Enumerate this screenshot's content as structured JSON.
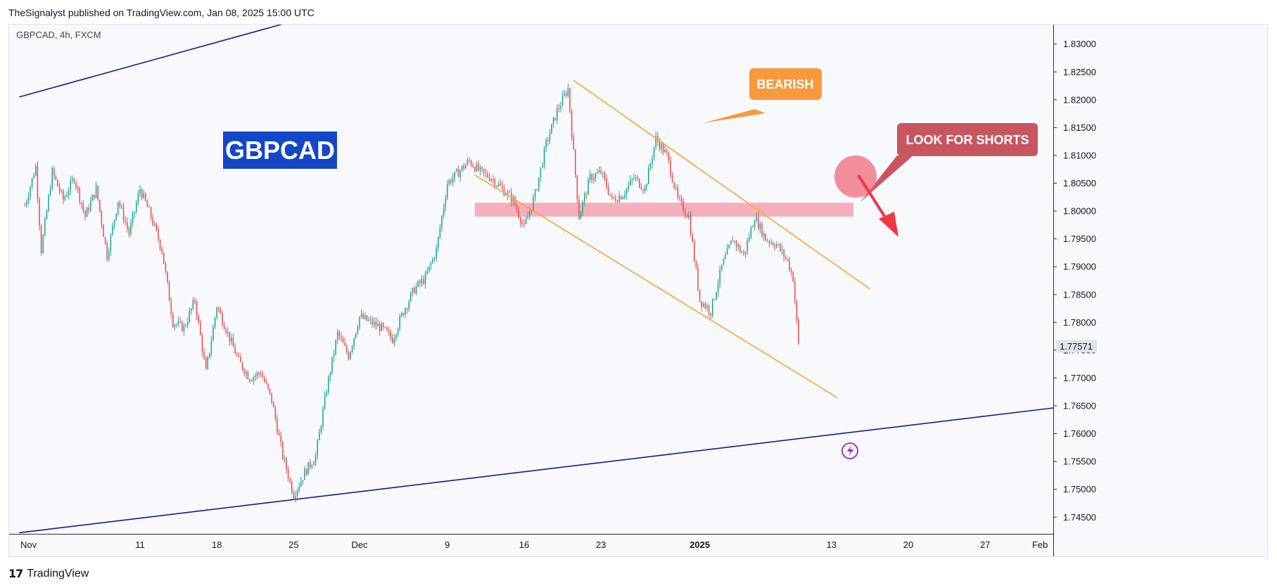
{
  "header": {
    "publisher": "TheSignalyst published on TradingView.com, Jan 08, 2025 15:00 UTC"
  },
  "footer": {
    "brand": "TradingView",
    "logo_glyph": "17"
  },
  "colors": {
    "up": "#26a69a",
    "down": "#ef5350",
    "channel": "#0d1f8c",
    "trend": "#f7a534",
    "zone": "#f4a6b3",
    "label_bearish_bg": "#f79a3e",
    "label_shorts_bg": "#c8565f",
    "title_bg": "#1447c8",
    "arrow": "#f23645",
    "circle": "#f06a7a"
  },
  "chart_data": {
    "type": "candlestick",
    "symbol_info": "GBPCAD, 4h, FXCM",
    "watermark": "GBPCAD",
    "annotations": {
      "bearish": "BEARISH",
      "shorts": "LOOK FOR SHORTS"
    },
    "last_price": "1.77571",
    "ylim": [
      1.742,
      1.8335
    ],
    "y_ticks": [
      "1.83000",
      "1.82500",
      "1.82000",
      "1.81500",
      "1.81000",
      "1.80500",
      "1.80000",
      "1.79500",
      "1.79000",
      "1.78500",
      "1.78000",
      "1.77500",
      "1.77000",
      "1.76500",
      "1.76000",
      "1.75500",
      "1.75000",
      "1.74500"
    ],
    "x_ticks": [
      {
        "label": "Nov",
        "day": 0,
        "bold": false
      },
      {
        "label": "11",
        "day": 10,
        "bold": false
      },
      {
        "label": "18",
        "day": 17,
        "bold": false
      },
      {
        "label": "25",
        "day": 24,
        "bold": false
      },
      {
        "label": "Dec",
        "day": 30,
        "bold": false
      },
      {
        "label": "9",
        "day": 38,
        "bold": false
      },
      {
        "label": "16",
        "day": 45,
        "bold": false
      },
      {
        "label": "23",
        "day": 52,
        "bold": false
      },
      {
        "label": "2025",
        "day": 61,
        "bold": true
      },
      {
        "label": "13",
        "day": 73,
        "bold": false
      },
      {
        "label": "20",
        "day": 80,
        "bold": false
      },
      {
        "label": "27",
        "day": 87,
        "bold": false
      },
      {
        "label": "Feb",
        "day": 92,
        "bold": false
      }
    ],
    "price_path": [
      [
        -0.5,
        1.801
      ],
      [
        0.5,
        1.808
      ],
      [
        1,
        1.793
      ],
      [
        2,
        1.807
      ],
      [
        3,
        1.802
      ],
      [
        4,
        1.806
      ],
      [
        5,
        1.799
      ],
      [
        6,
        1.804
      ],
      [
        7,
        1.792
      ],
      [
        8,
        1.802
      ],
      [
        9,
        1.796
      ],
      [
        10,
        1.804
      ],
      [
        11,
        1.799
      ],
      [
        12,
        1.793
      ],
      [
        13,
        1.78
      ],
      [
        14,
        1.779
      ],
      [
        15,
        1.784
      ],
      [
        16,
        1.771
      ],
      [
        17,
        1.783
      ],
      [
        18,
        1.778
      ],
      [
        19,
        1.773
      ],
      [
        20,
        1.77
      ],
      [
        21,
        1.771
      ],
      [
        22,
        1.766
      ],
      [
        23,
        1.756
      ],
      [
        24,
        1.749
      ],
      [
        25,
        1.753
      ],
      [
        26,
        1.756
      ],
      [
        27,
        1.768
      ],
      [
        28,
        1.778
      ],
      [
        29,
        1.774
      ],
      [
        30,
        1.781
      ],
      [
        31,
        1.78
      ],
      [
        32,
        1.779
      ],
      [
        33,
        1.777
      ],
      [
        34,
        1.782
      ],
      [
        35,
        1.786
      ],
      [
        36,
        1.788
      ],
      [
        37,
        1.793
      ],
      [
        38,
        1.805
      ],
      [
        39,
        1.807
      ],
      [
        40,
        1.809
      ],
      [
        41,
        1.807
      ],
      [
        42,
        1.806
      ],
      [
        43,
        1.804
      ],
      [
        44,
        1.802
      ],
      [
        45,
        1.797
      ],
      [
        46,
        1.803
      ],
      [
        47,
        1.812
      ],
      [
        48,
        1.818
      ],
      [
        49,
        1.822
      ],
      [
        49.6,
        1.808
      ],
      [
        50,
        1.799
      ],
      [
        51,
        1.806
      ],
      [
        52,
        1.807
      ],
      [
        53,
        1.802
      ],
      [
        54,
        1.803
      ],
      [
        55,
        1.806
      ],
      [
        56,
        1.804
      ],
      [
        57,
        1.813
      ],
      [
        58,
        1.81
      ],
      [
        59,
        1.802
      ],
      [
        60,
        1.799
      ],
      [
        61,
        1.784
      ],
      [
        62,
        1.782
      ],
      [
        63,
        1.79
      ],
      [
        64,
        1.795
      ],
      [
        65,
        1.792
      ],
      [
        66,
        1.799
      ],
      [
        67,
        1.795
      ],
      [
        68,
        1.794
      ],
      [
        69,
        1.791
      ],
      [
        69.5,
        1.788
      ],
      [
        70,
        1.776
      ]
    ],
    "channel_upper": [
      [
        -1,
        1.8205
      ],
      [
        64,
        1.856
      ]
    ],
    "channel_lower": [
      [
        -1,
        1.7422
      ],
      [
        120,
        1.771
      ]
    ],
    "trend_upper": [
      [
        49.5,
        1.8235
      ],
      [
        76.5,
        1.786
      ]
    ],
    "trend_lower": [
      [
        40.5,
        1.8065
      ],
      [
        73.5,
        1.7665
      ]
    ],
    "zone": {
      "from_day": 40.5,
      "to_day": 75,
      "low": 1.799,
      "high": 1.8015
    }
  }
}
